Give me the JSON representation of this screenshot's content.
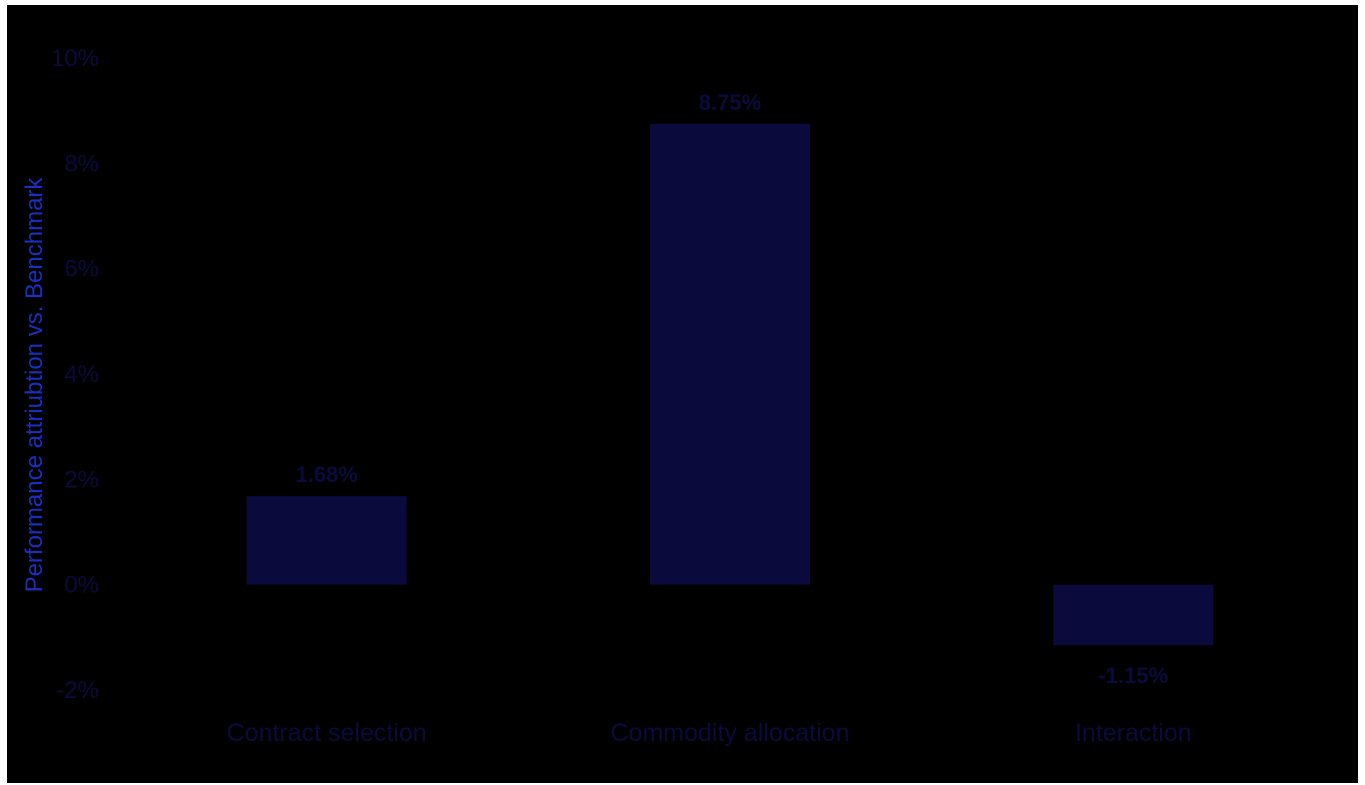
{
  "chart_data": {
    "type": "bar",
    "ylabel": "Performance attriubtion vs. Benchmark",
    "xlabel": "",
    "categories": [
      "Contract selection",
      "Commodity allocation",
      "Interaction"
    ],
    "values": [
      1.68,
      8.75,
      -1.15
    ],
    "data_labels": [
      "1.68%",
      "8.75%",
      "-1.15%"
    ],
    "ylim": [
      -2,
      10
    ],
    "yticks": [
      -2,
      0,
      2,
      4,
      6,
      8,
      10
    ],
    "ytick_labels": [
      "-2%",
      "0%",
      "2%",
      "4%",
      "6%",
      "8%",
      "10%"
    ],
    "grid": false,
    "legend": "none",
    "colors": {
      "background": "#000000",
      "bar": "#0a0a3d",
      "text": "#0a0a3d",
      "axis_title": "#1a2fbf"
    }
  }
}
